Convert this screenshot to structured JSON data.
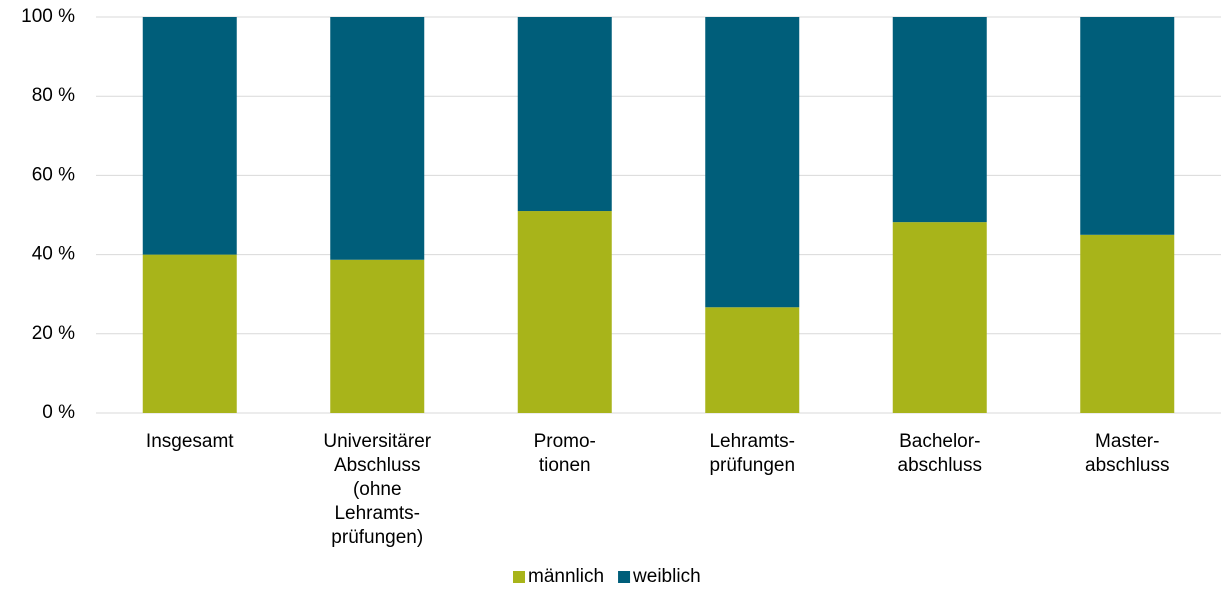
{
  "chart_data": {
    "type": "stacked_bar",
    "categories": [
      [
        "Insgesamt"
      ],
      [
        "Universitärer",
        "Abschluss",
        "(ohne",
        "Lehramts-",
        "prüfungen)"
      ],
      [
        "Promo-",
        "tionen"
      ],
      [
        "Lehramts-",
        "prüfungen"
      ],
      [
        "Bachelor-",
        "abschluss"
      ],
      [
        "Master-",
        "abschluss"
      ]
    ],
    "series": [
      {
        "name": "männlich",
        "color": "#a8b41a",
        "values": [
          40,
          38.7,
          51,
          26.7,
          48.2,
          45
        ]
      },
      {
        "name": "weiblich",
        "color": "#005e7a",
        "values": [
          60,
          61.3,
          49,
          73.3,
          51.8,
          55
        ]
      }
    ],
    "ylim": [
      0,
      100
    ],
    "yticks": [
      {
        "value": 0,
        "label": "0 %"
      },
      {
        "value": 20,
        "label": "20 %"
      },
      {
        "value": 40,
        "label": "40 %"
      },
      {
        "value": 60,
        "label": "60 %"
      },
      {
        "value": 80,
        "label": "80 %"
      },
      {
        "value": 100,
        "label": "100 %"
      }
    ],
    "grid": true,
    "legend": "bottom"
  }
}
